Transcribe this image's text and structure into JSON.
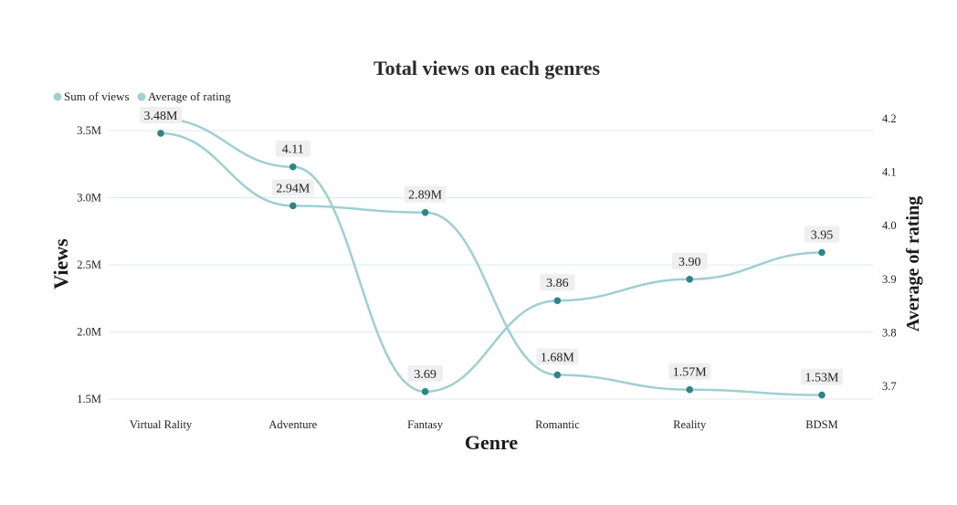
{
  "chart_data": {
    "type": "line",
    "title": "Total views on each genres",
    "xlabel": "Genre",
    "ylabel": "Views",
    "y2label": "Average of rating",
    "categories": [
      "Virtual Rality",
      "Adventure",
      "Fantasy",
      "Romantic",
      "Reality",
      "BDSM"
    ],
    "series": [
      {
        "name": "Sum of views",
        "axis": "left",
        "values": [
          3480000,
          2940000,
          2890000,
          1680000,
          1570000,
          1530000
        ],
        "labels": [
          "3.48M",
          "2.94M",
          "2.89M",
          "1.68M",
          "1.57M",
          "1.53M"
        ]
      },
      {
        "name": "Average of rating",
        "axis": "right",
        "values": [
          4.2,
          4.11,
          3.69,
          3.86,
          3.9,
          3.95
        ],
        "labels": [
          "",
          "4.11",
          "3.69",
          "3.86",
          "3.90",
          "3.95"
        ]
      }
    ],
    "yticks": [
      "1.5M",
      "2.0M",
      "2.5M",
      "3.0M",
      "3.5M"
    ],
    "ytick_values": [
      1500000,
      2000000,
      2500000,
      3000000,
      3500000
    ],
    "y2ticks": [
      "3.7",
      "3.8",
      "3.9",
      "4.0",
      "4.1",
      "4.2"
    ],
    "y2tick_values": [
      3.7,
      3.8,
      3.9,
      4.0,
      4.1,
      4.2
    ],
    "ylim": [
      1500000,
      3500000
    ],
    "y2lim": [
      3.7,
      4.2
    ],
    "grid": true,
    "legend": "top-left",
    "colors": {
      "line": "#9fcfd3",
      "marker": "#2f8585",
      "grid": "#d9ecec",
      "label_bg": "#efefef"
    }
  }
}
